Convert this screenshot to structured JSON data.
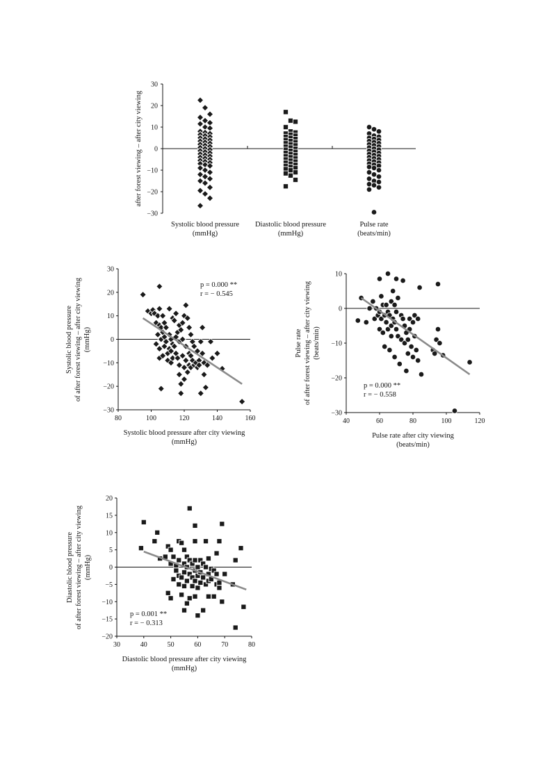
{
  "chart_data": [
    {
      "type": "scatter",
      "ylabel": "after forest viewing – after city viewing",
      "ylim": [
        -30,
        30
      ],
      "yticks": [
        "30",
        "20",
        "10",
        "0",
        "−10",
        "−20",
        "−30"
      ],
      "groups": [
        {
          "label_lines": [
            "Systolic blood pressure",
            "(mmHg)"
          ],
          "marker": "diamond",
          "values": [
            22.5,
            19,
            16,
            14.5,
            13,
            12,
            11.5,
            10,
            9.5,
            8,
            7.5,
            7,
            6.5,
            6,
            5.5,
            5,
            4.5,
            4,
            3.5,
            3,
            2.5,
            2,
            1.5,
            1,
            0.5,
            0,
            -0.5,
            -1,
            -1.5,
            -2,
            -2.5,
            -3,
            -3.5,
            -4,
            -4.5,
            -5,
            -5.5,
            -6,
            -6.5,
            -7,
            -7.5,
            -8,
            -9,
            -10,
            -11,
            -12,
            -13,
            -14,
            -15,
            -16,
            -18,
            -19.5,
            -21,
            -23,
            -26.5
          ]
        },
        {
          "label_lines": [
            "Diastolic blood pressure",
            "(mmHg)"
          ],
          "marker": "square",
          "values": [
            17,
            13,
            12.5,
            10,
            8,
            7.5,
            7,
            6.5,
            6,
            5.5,
            5,
            4.5,
            4,
            3.5,
            3,
            2.5,
            2,
            1.5,
            1,
            0.5,
            0,
            -0.5,
            -1,
            -1.5,
            -2,
            -2.5,
            -3,
            -3.5,
            -4,
            -4.5,
            -5,
            -5.5,
            -6,
            -6.5,
            -7,
            -7.5,
            -8,
            -8.5,
            -9,
            -9.5,
            -10,
            -11,
            -11.5,
            -12.5,
            -14.5,
            -17.5
          ]
        },
        {
          "label_lines": [
            "Pulse rate",
            "(beats/min)"
          ],
          "marker": "circle",
          "values": [
            10,
            9,
            8,
            7,
            6,
            5.5,
            5,
            4.5,
            4,
            3.5,
            3,
            2.5,
            2,
            1.5,
            1,
            0.5,
            0,
            -0.5,
            -1,
            -1.5,
            -2,
            -2.5,
            -3,
            -3.5,
            -4,
            -4.5,
            -5,
            -5.5,
            -6,
            -6.5,
            -7,
            -7.5,
            -8,
            -8.5,
            -9,
            -10,
            -11,
            -12,
            -13,
            -14,
            -15,
            -15.5,
            -16.5,
            -17,
            -18,
            -19,
            -29.5
          ]
        }
      ]
    },
    {
      "type": "scatter",
      "marker": "diamond",
      "xlabel_lines": [
        "Systolic blood pressure after city viewing",
        "(mmHg)"
      ],
      "ylabel_lines": [
        "Systolic blood pressure",
        "of after forest viewing – after city viewing",
        "(mmHg)"
      ],
      "xlim": [
        80,
        160
      ],
      "ylim": [
        -30,
        30
      ],
      "xticks": [
        80,
        100,
        120,
        140,
        160
      ],
      "yticks": [
        "30",
        "20",
        "10",
        "0",
        "−10",
        "−20",
        "−30"
      ],
      "stats": {
        "p": "p = 0.000 **",
        "r": "r = − 0.545"
      },
      "trend": [
        [
          95,
          9
        ],
        [
          155,
          -19
        ]
      ],
      "points": [
        [
          95,
          19
        ],
        [
          98,
          12
        ],
        [
          100,
          11
        ],
        [
          101,
          12.5
        ],
        [
          102,
          11
        ],
        [
          103,
          7
        ],
        [
          103,
          -2
        ],
        [
          104,
          10
        ],
        [
          104,
          2
        ],
        [
          105,
          22.5
        ],
        [
          105,
          13
        ],
        [
          105,
          6
        ],
        [
          105,
          -4
        ],
        [
          105,
          -8
        ],
        [
          106,
          5
        ],
        [
          106,
          0
        ],
        [
          106,
          -21
        ],
        [
          107,
          10
        ],
        [
          107,
          3
        ],
        [
          107,
          -7
        ],
        [
          108,
          7
        ],
        [
          108,
          1
        ],
        [
          108,
          -3
        ],
        [
          109,
          5
        ],
        [
          109,
          -1
        ],
        [
          110,
          -6
        ],
        [
          110,
          -9
        ],
        [
          111,
          13
        ],
        [
          111,
          2
        ],
        [
          111,
          -4
        ],
        [
          112,
          0
        ],
        [
          112,
          -5
        ],
        [
          112,
          -10
        ],
        [
          113,
          9
        ],
        [
          113,
          -2
        ],
        [
          113,
          -8
        ],
        [
          114,
          8
        ],
        [
          114,
          -3
        ],
        [
          115,
          11
        ],
        [
          115,
          1
        ],
        [
          115,
          -6
        ],
        [
          116,
          3
        ],
        [
          116,
          -8
        ],
        [
          117,
          6
        ],
        [
          117,
          -1
        ],
        [
          117,
          -11
        ],
        [
          117,
          -15
        ],
        [
          118,
          4
        ],
        [
          118,
          -19
        ],
        [
          118,
          -23
        ],
        [
          119,
          7
        ],
        [
          119,
          0
        ],
        [
          119,
          -7
        ],
        [
          120,
          10
        ],
        [
          120,
          -12
        ],
        [
          120,
          -17
        ],
        [
          121,
          14.5
        ],
        [
          121,
          -3
        ],
        [
          121,
          -9
        ],
        [
          122,
          9
        ],
        [
          122,
          -14
        ],
        [
          123,
          5
        ],
        [
          123,
          -6
        ],
        [
          123,
          -11
        ],
        [
          124,
          2
        ],
        [
          124,
          -7
        ],
        [
          124,
          -12
        ],
        [
          125,
          -1
        ],
        [
          125,
          -9
        ],
        [
          126,
          -3
        ],
        [
          126,
          -11
        ],
        [
          127,
          -10
        ],
        [
          128,
          -5
        ],
        [
          128,
          -12
        ],
        [
          129,
          -9
        ],
        [
          129,
          -11
        ],
        [
          130,
          -1
        ],
        [
          130,
          -23
        ],
        [
          131,
          5
        ],
        [
          131,
          -6
        ],
        [
          132,
          -10
        ],
        [
          132,
          -15
        ],
        [
          133,
          -20.5
        ],
        [
          134,
          -11
        ],
        [
          136,
          -1
        ],
        [
          137,
          -8
        ],
        [
          140,
          -6
        ],
        [
          143,
          -12.5
        ],
        [
          155,
          -26.5
        ]
      ]
    },
    {
      "type": "scatter",
      "marker": "circle",
      "xlabel_lines": [
        "Pulse rate after city viewing",
        "(beats/min)"
      ],
      "ylabel_lines": [
        "Pulse rate",
        "of after forest viewing – after city viewing",
        "(beats/min)"
      ],
      "xlim": [
        40,
        120
      ],
      "ylim": [
        -30,
        10
      ],
      "xticks": [
        40,
        60,
        80,
        100,
        120
      ],
      "yticks": [
        "10",
        "0",
        "−10",
        "−20",
        "−30"
      ],
      "stats": {
        "p": "p = 0.000 **",
        "r": "r = − 0.558"
      },
      "trend": [
        [
          49,
          3
        ],
        [
          114,
          -19
        ]
      ],
      "points": [
        [
          47,
          -3.5
        ],
        [
          49,
          3
        ],
        [
          52,
          -4
        ],
        [
          54,
          0
        ],
        [
          56,
          2
        ],
        [
          57,
          -3
        ],
        [
          58,
          0
        ],
        [
          59,
          -2
        ],
        [
          60,
          8.5
        ],
        [
          60,
          -1
        ],
        [
          60,
          -6
        ],
        [
          61,
          3.5
        ],
        [
          61,
          -3
        ],
        [
          62,
          1
        ],
        [
          62,
          -7
        ],
        [
          63,
          -2
        ],
        [
          63,
          -11
        ],
        [
          64,
          1
        ],
        [
          64,
          -4
        ],
        [
          65,
          10
        ],
        [
          65,
          -1
        ],
        [
          65,
          -6
        ],
        [
          66,
          -2
        ],
        [
          66,
          -12
        ],
        [
          67,
          2
        ],
        [
          67,
          -5
        ],
        [
          67,
          -8
        ],
        [
          68,
          5
        ],
        [
          68,
          -3
        ],
        [
          69,
          1
        ],
        [
          69,
          -4
        ],
        [
          69,
          -14
        ],
        [
          70,
          8.5
        ],
        [
          70,
          -1
        ],
        [
          70,
          -6
        ],
        [
          71,
          3
        ],
        [
          71,
          -8
        ],
        [
          72,
          -16
        ],
        [
          73,
          -2
        ],
        [
          73,
          -9
        ],
        [
          74,
          8
        ],
        [
          74,
          -3
        ],
        [
          75,
          -5
        ],
        [
          75,
          -10
        ],
        [
          76,
          -7
        ],
        [
          76,
          -18
        ],
        [
          77,
          -9
        ],
        [
          77,
          -13
        ],
        [
          78,
          -3
        ],
        [
          78,
          -6
        ],
        [
          79,
          -11
        ],
        [
          80,
          -4
        ],
        [
          80,
          -14
        ],
        [
          81,
          -2
        ],
        [
          81,
          -8
        ],
        [
          82,
          -12
        ],
        [
          83,
          -3
        ],
        [
          83,
          -15
        ],
        [
          84,
          6
        ],
        [
          85,
          -19
        ],
        [
          92,
          -12
        ],
        [
          93,
          -13
        ],
        [
          94,
          -9
        ],
        [
          95,
          -6
        ],
        [
          95,
          7
        ],
        [
          96,
          -10
        ],
        [
          98,
          -13.5
        ],
        [
          105,
          -29.5
        ],
        [
          114,
          -15.5
        ]
      ]
    },
    {
      "type": "scatter",
      "marker": "square",
      "xlabel_lines": [
        "Diastolic blood pressure after city viewing",
        "(mmHg)"
      ],
      "ylabel_lines": [
        "Diastolic blood pressure",
        "of after forest viewing – after city viewing",
        "(mmHg)"
      ],
      "xlim": [
        30,
        80
      ],
      "ylim": [
        -20,
        20
      ],
      "xticks": [
        30,
        40,
        50,
        60,
        70,
        80
      ],
      "yticks": [
        "20",
        "15",
        "10",
        "5",
        "0",
        "−5",
        "−10",
        "−15",
        "−20"
      ],
      "stats": {
        "p": "p = 0.001 **",
        "r": "r = − 0.313"
      },
      "trend": [
        [
          40,
          4.5
        ],
        [
          78,
          -6.5
        ]
      ],
      "points": [
        [
          39,
          5.5
        ],
        [
          40,
          13
        ],
        [
          44,
          7.5
        ],
        [
          45,
          10
        ],
        [
          46,
          2.5
        ],
        [
          48,
          3
        ],
        [
          49,
          6
        ],
        [
          49,
          -7.5
        ],
        [
          50,
          5
        ],
        [
          50,
          1
        ],
        [
          50,
          -9
        ],
        [
          51,
          3
        ],
        [
          51,
          -3.5
        ],
        [
          52,
          0.5
        ],
        [
          52,
          -1
        ],
        [
          53,
          7.5
        ],
        [
          53,
          2
        ],
        [
          53,
          -2.5
        ],
        [
          53,
          -5
        ],
        [
          54,
          7
        ],
        [
          54,
          -3
        ],
        [
          54,
          -8
        ],
        [
          55,
          5
        ],
        [
          55,
          1
        ],
        [
          55,
          -1.5
        ],
        [
          55,
          -5.5
        ],
        [
          55,
          -12.5
        ],
        [
          56,
          3
        ],
        [
          56,
          0
        ],
        [
          56,
          -4
        ],
        [
          56,
          -10.5
        ],
        [
          57,
          17
        ],
        [
          57,
          2
        ],
        [
          57,
          -2
        ],
        [
          57,
          -9
        ],
        [
          58,
          1
        ],
        [
          58,
          -3
        ],
        [
          58,
          -5.5
        ],
        [
          59,
          12
        ],
        [
          59,
          7.5
        ],
        [
          59,
          2
        ],
        [
          59,
          -1
        ],
        [
          59,
          -4
        ],
        [
          59,
          -8.5
        ],
        [
          60,
          0
        ],
        [
          60,
          -2.5
        ],
        [
          60,
          -6
        ],
        [
          60,
          -14
        ],
        [
          61,
          2
        ],
        [
          61,
          -1.5
        ],
        [
          61,
          -4.5
        ],
        [
          62,
          1
        ],
        [
          62,
          -3
        ],
        [
          62,
          -12.5
        ],
        [
          63,
          7.5
        ],
        [
          63,
          0
        ],
        [
          63,
          -5
        ],
        [
          64,
          2.5
        ],
        [
          64,
          -2
        ],
        [
          64,
          -4
        ],
        [
          64,
          -8.5
        ],
        [
          65,
          -0.5
        ],
        [
          65,
          -3.5
        ],
        [
          66,
          -1
        ],
        [
          66,
          -8.5
        ],
        [
          67,
          4
        ],
        [
          67,
          -2
        ],
        [
          67,
          -5
        ],
        [
          68,
          7.5
        ],
        [
          68,
          -4.5
        ],
        [
          68,
          -6
        ],
        [
          69,
          12.5
        ],
        [
          69,
          -10
        ],
        [
          70,
          -2
        ],
        [
          73,
          -5
        ],
        [
          74,
          -17.5
        ],
        [
          74,
          2
        ],
        [
          76,
          5.5
        ],
        [
          77,
          -11.5
        ]
      ]
    }
  ]
}
